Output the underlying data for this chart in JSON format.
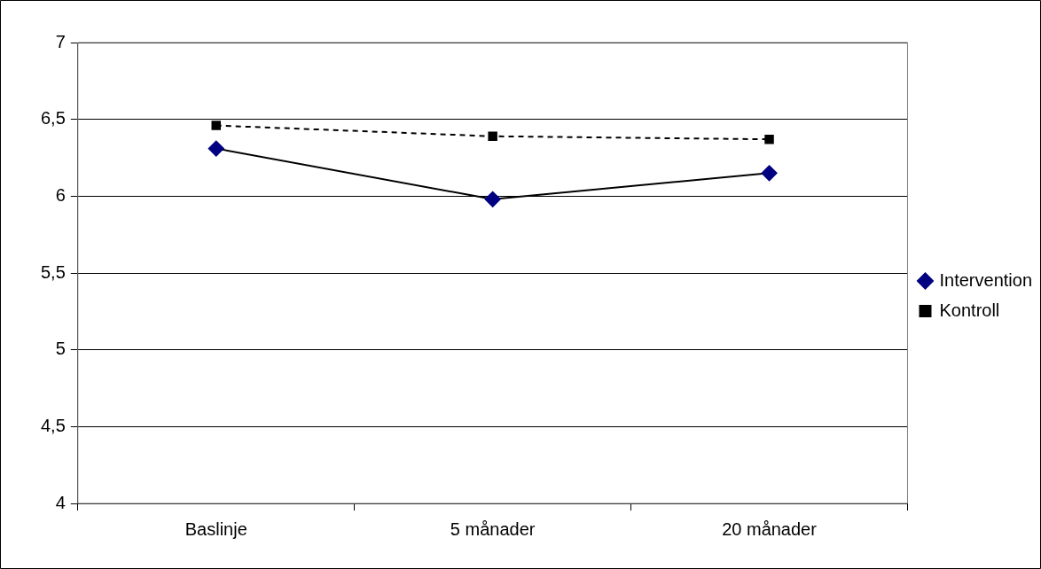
{
  "chart_data": {
    "type": "line",
    "categories": [
      "Baslinje",
      "5 månader",
      "20 månader"
    ],
    "series": [
      {
        "name": "Intervention",
        "color": "#000080",
        "values": [
          6.31,
          5.98,
          6.15
        ],
        "marker": "diamond",
        "line_style": "solid"
      },
      {
        "name": "Kontroll",
        "color": "#000000",
        "values": [
          6.46,
          6.39,
          6.37
        ],
        "marker": "square",
        "line_style": "dashed"
      }
    ],
    "ylim": [
      4,
      7
    ],
    "yticks": [
      4,
      {
        "value": 4.5,
        "label": "4,5"
      },
      5,
      {
        "value": 5.5,
        "label": "5,5"
      },
      6,
      {
        "value": 6.5,
        "label": "6,5"
      },
      7
    ],
    "grid": "y",
    "legend": "right"
  }
}
